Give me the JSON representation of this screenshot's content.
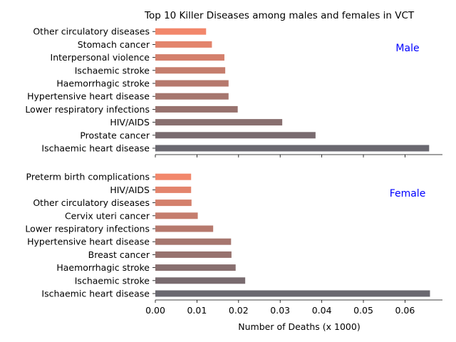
{
  "chart_data": {
    "type": "bar",
    "orientation": "horizontal",
    "title": "Top 10 Killer Diseases among males and females in VCT",
    "xlabel": "Number of Deaths (x 1000)",
    "xlim": [
      0,
      0.069
    ],
    "x_ticks": [
      "0.00",
      "0.01",
      "0.02",
      "0.03",
      "0.04",
      "0.05",
      "0.06"
    ],
    "panel_label_color": "#0000ff",
    "bar_color_start": "#6a6870",
    "bar_color_end": "#f2876b",
    "panels": [
      {
        "label": "Male",
        "categories": [
          "Ischaemic heart disease",
          "Prostate cancer",
          "HIV/AIDS",
          "Lower respiratory infections",
          "Hypertensive heart disease",
          "Haemorrhagic stroke",
          "Ischaemic stroke",
          "Interpersonal violence",
          "Stomach cancer",
          "Other circulatory diseases"
        ],
        "values": [
          0.0658,
          0.0385,
          0.0305,
          0.0198,
          0.0176,
          0.0176,
          0.0168,
          0.0166,
          0.0136,
          0.0122
        ]
      },
      {
        "label": "Female",
        "categories": [
          "Ischaemic heart disease",
          "Ischaemic stroke",
          "Haemorrhagic stroke",
          "Breast cancer",
          "Hypertensive heart disease",
          "Lower respiratory infections",
          "Cervix uteri cancer",
          "Other circulatory diseases",
          "HIV/AIDS",
          "Preterm birth complications"
        ],
        "values": [
          0.066,
          0.0216,
          0.0193,
          0.0183,
          0.0182,
          0.0139,
          0.0102,
          0.0087,
          0.0086,
          0.0086
        ]
      }
    ]
  }
}
